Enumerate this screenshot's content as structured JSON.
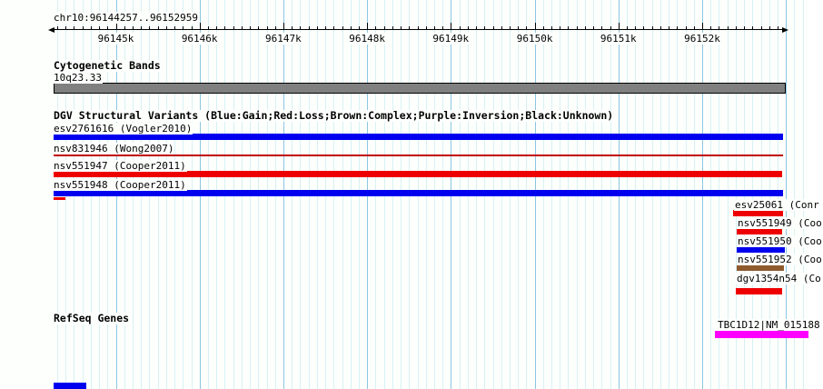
{
  "header": {
    "region_label": "chr10:96144257..96152959"
  },
  "ruler": {
    "start": 96144257,
    "end": 96152959,
    "minor_step_bp": 100,
    "major_step_bp": 1000,
    "ticks": [
      {
        "label": "96145k",
        "bp": 96145000
      },
      {
        "label": "96146k",
        "bp": 96146000
      },
      {
        "label": "96147k",
        "bp": 96147000
      },
      {
        "label": "96148k",
        "bp": 96148000
      },
      {
        "label": "96149k",
        "bp": 96149000
      },
      {
        "label": "96150k",
        "bp": 96150000
      },
      {
        "label": "96151k",
        "bp": 96151000
      },
      {
        "label": "96152k",
        "bp": 96152000
      }
    ]
  },
  "tracks": {
    "cytobands": {
      "title": "Cytogenetic Bands",
      "band_label": "10q23.33",
      "band_color": "#808080"
    },
    "dgv": {
      "title": "DGV Structural Variants (Blue:Gain;Red:Loss;Brown:Complex;Purple:Inversion;Black:Unknown)",
      "variants": [
        {
          "label": "esv2761616 (Vogler2010)",
          "color": "#0000ee",
          "meaning": "Gain",
          "style": "thick",
          "extent": "full-view"
        },
        {
          "label": "nsv831946 (Wong2007)",
          "color": "#c00000",
          "meaning": "Loss",
          "style": "thin",
          "extent": "full-view"
        },
        {
          "label": "nsv551947 (Cooper2011)",
          "color": "#ee0000",
          "meaning": "Loss",
          "style": "thick",
          "extent": "full-view"
        },
        {
          "label": "nsv551948 (Cooper2011)",
          "color": "#0000ee",
          "meaning": "Gain",
          "style": "thick",
          "extent": "full-view"
        },
        {
          "label": "esv25061 (Conr",
          "color": "#ee0000",
          "meaning": "Loss",
          "style": "thick",
          "extent": "right-edge"
        },
        {
          "label": "nsv551949 (Coo",
          "color": "#ee0000",
          "meaning": "Loss",
          "style": "thick",
          "extent": "right-edge"
        },
        {
          "label": "nsv551950 (Coo",
          "color": "#0000ee",
          "meaning": "Gain",
          "style": "thick",
          "extent": "right-edge"
        },
        {
          "label": "nsv551952 (Coo",
          "color": "#8f5b2d",
          "meaning": "Complex",
          "style": "thick",
          "extent": "right-edge"
        },
        {
          "label": "dgv1354n54 (Co",
          "color": "#ee0000",
          "meaning": "Loss",
          "style": "thick",
          "extent": "right-edge"
        }
      ]
    },
    "refseq": {
      "title": "RefSeq Genes",
      "genes": [
        {
          "label": "TBC1D12|NM_015188",
          "color": "#ff00ff"
        }
      ]
    }
  },
  "colors": {
    "gain_blue": "#0000ee",
    "loss_red": "#ee0000",
    "complex_brown": "#8f5b2d",
    "gene_magenta": "#ff00ff",
    "cytoband_gray": "#808080",
    "grid_minor": "#d7f1f4",
    "grid_major": "#8cc6e4"
  }
}
